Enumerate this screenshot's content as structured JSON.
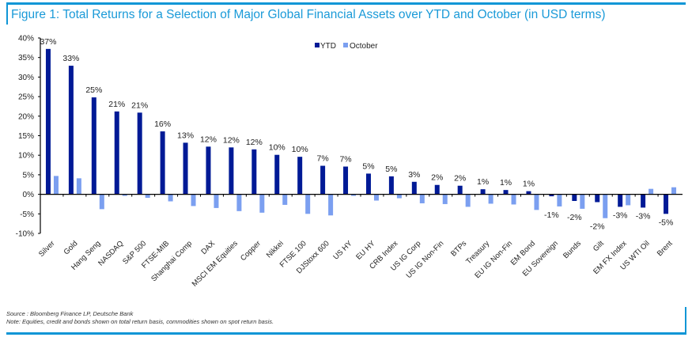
{
  "figure": {
    "title": "Figure 1: Total Returns for a Selection of Major Global Financial Assets over YTD and October (in USD terms)",
    "source": "Source : Bloomberg Finance LP, Deutsche Bank",
    "note": "Note: Equities, credit and bonds shown on total return basis, commodities shown on spot return basis."
  },
  "colors": {
    "accent": "#0f96d6",
    "ytd": "#001a96",
    "october": "#7b9ff0"
  },
  "chart_data": {
    "type": "bar",
    "title": "Total Returns for a Selection of Major Global Financial Assets over YTD and October (in USD terms)",
    "xlabel": "",
    "ylabel": "",
    "ylim": [
      -10,
      40
    ],
    "yticks": [
      -10,
      -5,
      0,
      5,
      10,
      15,
      20,
      25,
      30,
      35,
      40
    ],
    "ytick_labels": [
      "-10%",
      "-5%",
      "0%",
      "5%",
      "10%",
      "15%",
      "20%",
      "25%",
      "30%",
      "35%",
      "40%"
    ],
    "grid": false,
    "legend_position": "top-center",
    "categories": [
      "Silver",
      "Gold",
      "Hang Seng",
      "NASDAQ",
      "S&P 500",
      "FTSE-MIB",
      "Shanghai Comp",
      "DAX",
      "MSCI EM Equities",
      "Copper",
      "Nikkei",
      "FTSE 100",
      "DJStoxx 600",
      "US HY",
      "EU HY",
      "CRB Index",
      "US IG Corp",
      "US IG Non-Fin",
      "BTPs",
      "Treasury",
      "EU IG Non-Fin",
      "EM Bond",
      "EU Sovereign",
      "Bunds",
      "Gilt",
      "EM FX Index",
      "US WTI Oil",
      "Brent"
    ],
    "series": [
      {
        "name": "YTD",
        "values": [
          37.2,
          32.9,
          24.8,
          21.2,
          20.9,
          16.1,
          13.2,
          12.2,
          12.0,
          11.5,
          10.1,
          9.6,
          7.3,
          7.1,
          5.3,
          4.6,
          3.2,
          2.4,
          2.2,
          1.3,
          1.1,
          0.8,
          -0.5,
          -1.7,
          -2.0,
          -3.2,
          -3.4,
          -5.0
        ],
        "labels": [
          "37%",
          "33%",
          "25%",
          "21%",
          "21%",
          "16%",
          "13%",
          "12%",
          "12%",
          "12%",
          "10%",
          "10%",
          "7%",
          "7%",
          "5%",
          "5%",
          "3%",
          "2%",
          "2%",
          "1%",
          "1%",
          "1%",
          "-1%",
          "-2%",
          "-2%",
          "-3%",
          "-3%",
          "-5%"
        ]
      },
      {
        "name": "October",
        "values": [
          4.7,
          4.1,
          -3.8,
          -0.4,
          -0.9,
          -1.8,
          -3.0,
          -3.5,
          -4.3,
          -4.7,
          -2.7,
          -5.0,
          -5.4,
          -0.4,
          -1.6,
          -1.0,
          -2.3,
          -2.5,
          -3.2,
          -2.4,
          -2.6,
          -4.0,
          -3.1,
          -3.7,
          -6.1,
          -2.8,
          1.4,
          1.8
        ]
      }
    ]
  }
}
